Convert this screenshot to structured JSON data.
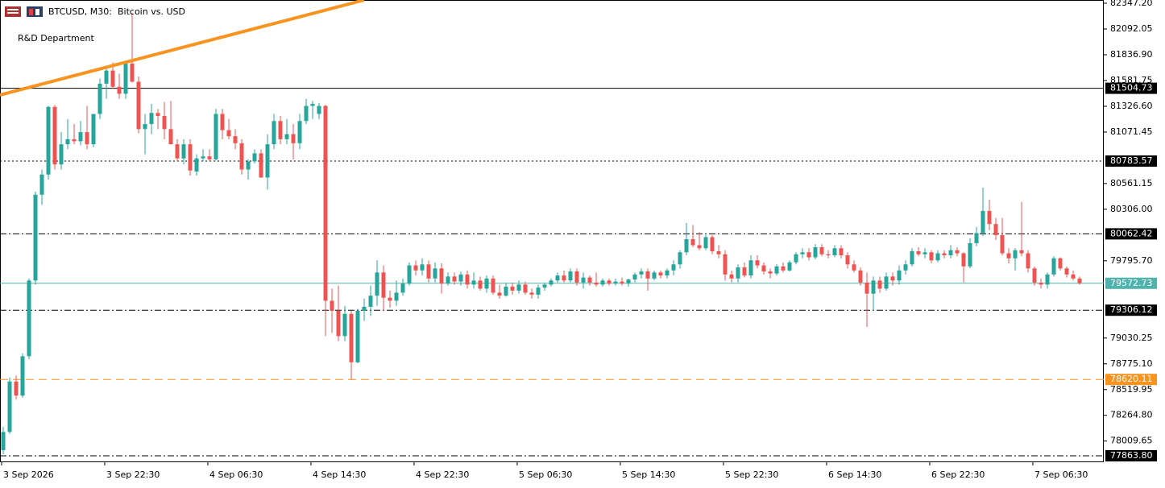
{
  "chart_data": {
    "type": "candlestick",
    "title": "BTCUSD, M30:  Bitcoin vs. USD",
    "annotation": "R&D Department",
    "up_color": "#26a69a",
    "down_color": "#ef5350",
    "categories": [
      "3 Sep 2026",
      null,
      null,
      null,
      null,
      null,
      null,
      null,
      null,
      null,
      null,
      null,
      null,
      null,
      null,
      null,
      "3 Sep 22:30",
      null,
      null,
      null,
      null,
      null,
      null,
      null,
      null,
      null,
      null,
      null,
      null,
      null,
      null,
      null,
      "4 Sep 06:30",
      null,
      null,
      null,
      null,
      null,
      null,
      null,
      null,
      null,
      null,
      null,
      null,
      null,
      null,
      null,
      "4 Sep 14:30",
      null,
      null,
      null,
      null,
      null,
      null,
      null,
      null,
      null,
      null,
      null,
      null,
      null,
      null,
      null,
      "4 Sep 22:30",
      null,
      null,
      null,
      null,
      null,
      null,
      null,
      null,
      null,
      null,
      null,
      null,
      null,
      null,
      null,
      "5 Sep 06:30",
      null,
      null,
      null,
      null,
      null,
      null,
      null,
      null,
      null,
      null,
      null,
      null,
      null,
      null,
      null,
      "5 Sep 14:30",
      null,
      null,
      null,
      null,
      null,
      null,
      null,
      null,
      null,
      null,
      null,
      null,
      null,
      null,
      null,
      "5 Sep 22:30",
      null,
      null,
      null,
      null,
      null,
      null,
      null,
      null,
      null,
      null,
      null,
      null,
      null,
      null,
      null,
      "6 Sep 14:30",
      null,
      null,
      null,
      null,
      null,
      null,
      null,
      null,
      null,
      null,
      null,
      null,
      null,
      null,
      null,
      "6 Sep 22:30",
      null,
      null,
      null,
      null,
      null,
      null,
      null,
      null,
      null,
      null,
      null,
      null,
      null,
      null,
      null,
      "7 Sep 06:30",
      null,
      null,
      null,
      null,
      null,
      null,
      null
    ],
    "open": [
      77920,
      78100,
      78600,
      78460,
      78850,
      79600,
      80450,
      80650,
      81320,
      80750,
      80950,
      81000,
      80980,
      81070,
      80950,
      81250,
      81550,
      81680,
      81520,
      81450,
      81750,
      81570,
      81100,
      81150,
      81260,
      81230,
      81100,
      80950,
      80810,
      80950,
      80680,
      80810,
      80830,
      80800,
      81250,
      81090,
      81030,
      80960,
      80700,
      80780,
      80860,
      80620,
      80950,
      81180,
      81000,
      81050,
      80960,
      81180,
      81330,
      81250,
      81330,
      79400,
      79300,
      79050,
      79270,
      78790,
      79300,
      79340,
      79450,
      79680,
      79430,
      79400,
      79480,
      79570,
      79750,
      79700,
      79760,
      79620,
      79720,
      79570,
      79640,
      79590,
      79660,
      79560,
      79600,
      79520,
      79620,
      79480,
      79450,
      79540,
      79500,
      79560,
      79480,
      79460,
      79530,
      79560,
      79600,
      79650,
      79600,
      79690,
      79580,
      79630,
      79580,
      79560,
      79600,
      79570,
      79590,
      79570,
      79610,
      79660,
      79690,
      79620,
      79680,
      79650,
      79700,
      79760,
      79880,
      80010,
      79950,
      79920,
      80030,
      79890,
      79860,
      79660,
      79620,
      79730,
      79650,
      79800,
      79750,
      79690,
      79670,
      79740,
      79700,
      79780,
      79860,
      79880,
      79830,
      79930,
      79860,
      79850,
      79920,
      79850,
      79760,
      79700,
      79580,
      79470,
      79600,
      79520,
      79640,
      79600,
      79700,
      79760,
      79890,
      79860,
      79880,
      79800,
      79870,
      79850,
      79900,
      79870,
      79740,
      79970,
      80070,
      80290,
      80160,
      80050,
      79870,
      79820,
      79900,
      79870,
      79720,
      79580,
      79560,
      79660,
      79820,
      79720,
      79660,
      79620
    ],
    "high": [
      78150,
      78640,
      78660,
      78880,
      79620,
      80480,
      80700,
      81330,
      81340,
      81070,
      81200,
      81150,
      81180,
      81330,
      81250,
      81600,
      81720,
      81760,
      81650,
      81780,
      82250,
      81620,
      81250,
      81350,
      81300,
      81370,
      81380,
      81000,
      81000,
      81000,
      80850,
      80900,
      80900,
      81300,
      81300,
      81200,
      81100,
      81000,
      80800,
      80900,
      80900,
      81050,
      81250,
      81230,
      81200,
      81150,
      81250,
      81400,
      81380,
      81360,
      81340,
      79520,
      79550,
      79350,
      79300,
      79320,
      79420,
      79550,
      79800,
      79750,
      79500,
      79600,
      79620,
      79780,
      79800,
      79820,
      79800,
      79780,
      79770,
      79680,
      79680,
      79690,
      79700,
      79680,
      79640,
      79650,
      79650,
      79560,
      79580,
      79580,
      79600,
      79590,
      79520,
      79560,
      79580,
      79620,
      79680,
      79700,
      79720,
      79720,
      79680,
      79650,
      79680,
      79620,
      79620,
      79620,
      79630,
      79620,
      79680,
      79720,
      79720,
      79700,
      79700,
      79720,
      79800,
      79900,
      80170,
      80150,
      80080,
      80050,
      80050,
      79950,
      79900,
      79700,
      79760,
      79780,
      79850,
      79850,
      79780,
      79720,
      79760,
      79780,
      79800,
      79880,
      79920,
      79920,
      79960,
      79960,
      79900,
      79950,
      79950,
      79880,
      79800,
      79730,
      79680,
      79640,
      79640,
      79680,
      79680,
      79750,
      79800,
      79920,
      79930,
      79920,
      79900,
      79900,
      79900,
      79950,
      79930,
      79880,
      80020,
      80130,
      80520,
      80400,
      80220,
      80220,
      79920,
      79920,
      80380,
      79900,
      79740,
      79620,
      79680,
      79840,
      79830,
      79740,
      79700,
      79640
    ],
    "low": [
      77880,
      78080,
      78420,
      78440,
      78820,
      79560,
      80350,
      80600,
      80700,
      80700,
      80900,
      80950,
      80940,
      80900,
      80920,
      81200,
      81400,
      81500,
      81400,
      81400,
      81560,
      81060,
      80850,
      81050,
      81100,
      81000,
      80950,
      80780,
      80750,
      80640,
      80640,
      80780,
      80780,
      80790,
      81000,
      81000,
      80900,
      80650,
      80600,
      80760,
      80620,
      80500,
      80900,
      80950,
      80950,
      80800,
      80900,
      81150,
      81200,
      81200,
      79050,
      79080,
      79000,
      79000,
      78620,
      78780,
      79200,
      79250,
      79350,
      79300,
      79330,
      79350,
      79450,
      79550,
      79650,
      79650,
      79580,
      79580,
      79470,
      79550,
      79560,
      79550,
      79520,
      79520,
      79500,
      79480,
      79460,
      79420,
      79440,
      79460,
      79470,
      79460,
      79420,
      79420,
      79500,
      79540,
      79580,
      79580,
      79580,
      79550,
      79520,
      79550,
      79540,
      79540,
      79550,
      79550,
      79550,
      79540,
      79580,
      79620,
      79500,
      79600,
      79620,
      79620,
      79650,
      79720,
      79850,
      79930,
      79900,
      79900,
      79860,
      79820,
      79600,
      79580,
      79580,
      79630,
      79620,
      79720,
      79660,
      79620,
      79650,
      79680,
      79690,
      79760,
      79820,
      79800,
      79810,
      79840,
      79820,
      79830,
      79820,
      79720,
      79680,
      79550,
      79140,
      79300,
      79480,
      79500,
      79550,
      79560,
      79660,
      79740,
      79840,
      79820,
      79770,
      79780,
      79820,
      79820,
      79840,
      79580,
      79720,
      79940,
      80040,
      80100,
      80000,
      79850,
      79770,
      79700,
      79840,
      79680,
      79550,
      79520,
      79520,
      79640,
      79700,
      79630,
      79600,
      79560
    ],
    "close": [
      78100,
      78600,
      78460,
      78850,
      79600,
      80450,
      80650,
      81320,
      80750,
      80950,
      81000,
      80980,
      81070,
      80950,
      81250,
      81550,
      81680,
      81520,
      81450,
      81750,
      81570,
      81100,
      81150,
      81260,
      81230,
      81100,
      80950,
      80810,
      80950,
      80690,
      80810,
      80830,
      80800,
      81250,
      81090,
      81030,
      80960,
      80700,
      80780,
      80860,
      80620,
      80950,
      81180,
      81000,
      81050,
      80960,
      81180,
      81330,
      81350,
      81330,
      79400,
      79300,
      79050,
      79270,
      78790,
      79300,
      79340,
      79450,
      79680,
      79430,
      79400,
      79480,
      79570,
      79750,
      79700,
      79760,
      79620,
      79720,
      79570,
      79640,
      79590,
      79660,
      79560,
      79600,
      79520,
      79620,
      79480,
      79450,
      79540,
      79500,
      79560,
      79480,
      79460,
      79530,
      79560,
      79600,
      79650,
      79600,
      79690,
      79580,
      79630,
      79580,
      79560,
      79600,
      79570,
      79590,
      79570,
      79610,
      79660,
      79690,
      79620,
      79680,
      79650,
      79700,
      79760,
      79880,
      80010,
      79950,
      79920,
      80030,
      79890,
      79860,
      79660,
      79620,
      79730,
      79650,
      79800,
      79750,
      79690,
      79670,
      79740,
      79700,
      79780,
      79860,
      79880,
      79830,
      79930,
      79860,
      79850,
      79920,
      79850,
      79760,
      79700,
      79580,
      79470,
      79600,
      79520,
      79640,
      79600,
      79700,
      79760,
      79890,
      79860,
      79880,
      79800,
      79870,
      79850,
      79900,
      79870,
      79740,
      79970,
      80070,
      80290,
      80160,
      80050,
      79870,
      79820,
      79900,
      79870,
      79720,
      79580,
      79560,
      79660,
      79820,
      79720,
      79660,
      79620,
      79573
    ],
    "ylim": [
      {
        "value": 77863.8,
        "label": "77863.80"
      },
      {
        "value": 82347.2,
        "label": "82347.20"
      }
    ],
    "yticks": [
      {
        "value": 82347.2,
        "label": "82347.20"
      },
      {
        "value": 82092.05,
        "label": "82092.05"
      },
      {
        "value": 81836.9,
        "label": "81836.90"
      },
      {
        "value": 81581.75,
        "label": "81581.75"
      },
      {
        "value": 81326.6,
        "label": "81326.60"
      },
      {
        "value": 81071.45,
        "label": "81071.45"
      },
      {
        "value": 80561.15,
        "label": "80561.15"
      },
      {
        "value": 80306,
        "label": "80306.00"
      },
      {
        "value": 79795.7,
        "label": "79795.70"
      },
      {
        "value": 79030.25,
        "label": "79030.25"
      },
      {
        "value": 78775.1,
        "label": "78775.10"
      },
      {
        "value": 78519.95,
        "label": "78519.95"
      },
      {
        "value": 78264.8,
        "label": "78264.80"
      },
      {
        "value": 78009.65,
        "label": "78009.65"
      }
    ],
    "levels": [
      {
        "value": 81504.73,
        "style": "solid",
        "color": "#000000"
      },
      {
        "value": 80783.57,
        "style": "dot",
        "color": "#000000"
      },
      {
        "value": 80062.42,
        "style": "dashdot",
        "color": "#000000"
      },
      {
        "value": 79572.73,
        "style": "solid",
        "color": "#4fb3ad"
      },
      {
        "value": 79306.12,
        "style": "dashdot",
        "color": "#000000"
      },
      {
        "value": 78620.11,
        "style": "dash",
        "color": "#f7931e"
      },
      {
        "value": {
          "value": 77863.8,
          "label": "77863.80"
        },
        "style": "dashdot",
        "color": "#000000"
      }
    ],
    "grid": false
  }
}
